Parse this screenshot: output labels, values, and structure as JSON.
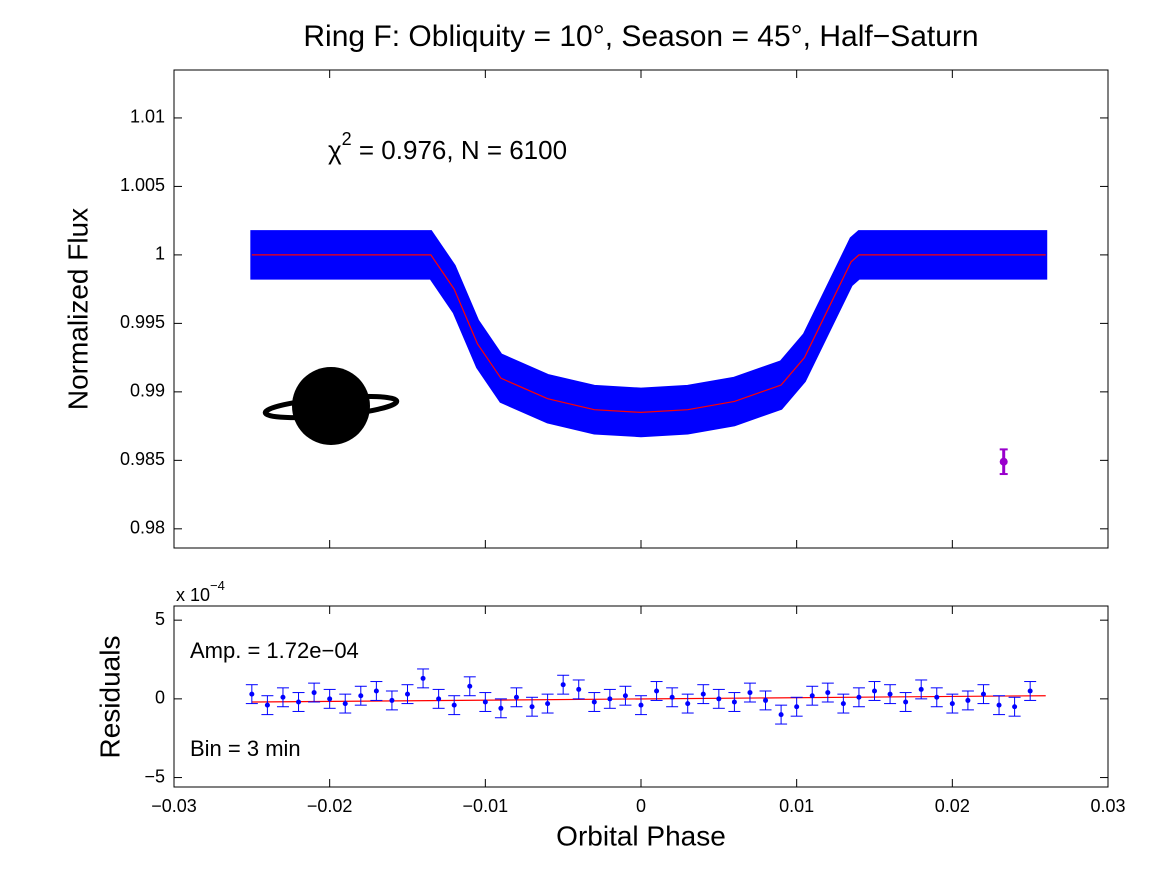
{
  "chart_data": [
    {
      "type": "band",
      "title": "Ring F: Obliquity = 10°, Season = 45°, Half−Saturn",
      "ylabel": "Normalized Flux",
      "annotation": {
        "symbol": "χ",
        "superscript": "2",
        "text": " = 0.976, N = 6100"
      },
      "xlim": [
        -0.03,
        0.03
      ],
      "xticks": [
        -0.03,
        -0.02,
        -0.01,
        0,
        0.01,
        0.02,
        0.03
      ],
      "ylim": [
        0.9786,
        1.0135
      ],
      "yticks": [
        0.98,
        0.985,
        0.99,
        0.995,
        1,
        1.005,
        1.01
      ],
      "x": [
        -0.025,
        -0.02,
        -0.015,
        -0.0135,
        -0.012,
        -0.0105,
        -0.009,
        -0.006,
        -0.003,
        0,
        0.003,
        0.006,
        0.009,
        0.0105,
        0.012,
        0.0135,
        0.014,
        0.02,
        0.026
      ],
      "band": {
        "color": "#0000ff",
        "upper": [
          1.0017,
          1.0017,
          1.0017,
          1.0017,
          0.9992,
          0.9952,
          0.9927,
          0.9912,
          0.9904,
          0.9902,
          0.9904,
          0.991,
          0.9922,
          0.9942,
          0.9977,
          1.0012,
          1.0017,
          1.0017,
          1.0017
        ],
        "lower": [
          0.9983,
          0.9983,
          0.9983,
          0.9983,
          0.9958,
          0.9918,
          0.9893,
          0.9878,
          0.987,
          0.9868,
          0.987,
          0.9876,
          0.9888,
          0.9908,
          0.9943,
          0.9978,
          0.9983,
          0.9983,
          0.9983
        ]
      },
      "series": [
        {
          "color": "#ff0000",
          "values": [
            1,
            1,
            1,
            1,
            0.9975,
            0.9935,
            0.991,
            0.9895,
            0.9887,
            0.9885,
            0.9887,
            0.9893,
            0.9905,
            0.9925,
            0.996,
            0.9995,
            1,
            1,
            1
          ]
        }
      ],
      "errorbar": {
        "x": 0.0233,
        "value": 0.9849,
        "error": 0.0009,
        "color": "#9900cc"
      }
    },
    {
      "type": "errorbar",
      "ylabel": "Residuals",
      "xlabel": "Orbital Phase",
      "y_multiplier": {
        "base": "x 10",
        "exponent": "−4"
      },
      "annotations": [
        "Amp. = 1.72e−04",
        "Bin = 3 min"
      ],
      "xlim": [
        -0.03,
        0.03
      ],
      "xticks": [
        {
          "value": -0.03,
          "label": "−0.03"
        },
        {
          "value": -0.02,
          "label": "−0.02"
        },
        {
          "value": -0.01,
          "label": "−0.01"
        },
        0,
        0.01,
        0.02,
        0.03
      ],
      "ylim": [
        -5.6,
        5.9
      ],
      "yticks": [
        {
          "value": -5,
          "label": "−5"
        },
        0,
        5
      ],
      "x": [
        -0.025,
        -0.024,
        -0.023,
        -0.022,
        -0.021,
        -0.02,
        -0.019,
        -0.018,
        -0.017,
        -0.016,
        -0.015,
        -0.014,
        -0.013,
        -0.012,
        -0.011,
        -0.01,
        -0.009,
        -0.008,
        -0.007,
        -0.006,
        -0.005,
        -0.004,
        -0.003,
        -0.002,
        -0.001,
        0,
        0.001,
        0.002,
        0.003,
        0.004,
        0.005,
        0.006,
        0.007,
        0.008,
        0.009,
        0.01,
        0.011,
        0.012,
        0.013,
        0.014,
        0.015,
        0.016,
        0.017,
        0.018,
        0.019,
        0.02,
        0.021,
        0.022,
        0.023,
        0.024,
        0.025
      ],
      "values": [
        0.3,
        -0.4,
        0.1,
        -0.2,
        0.4,
        0,
        -0.3,
        0.2,
        0.5,
        -0.1,
        0.3,
        1.3,
        0,
        -0.4,
        0.8,
        -0.2,
        -0.6,
        0.1,
        -0.5,
        -0.3,
        0.9,
        0.6,
        -0.2,
        0,
        0.2,
        -0.4,
        0.5,
        0.1,
        -0.3,
        0.3,
        0,
        -0.2,
        0.4,
        -0.1,
        -1.0,
        -0.5,
        0.2,
        0.4,
        -0.3,
        0.1,
        0.5,
        0.3,
        -0.2,
        0.6,
        0.1,
        -0.3,
        -0.1,
        0.3,
        -0.4,
        -0.5,
        0.5
      ],
      "error": 0.6,
      "color": "#0000ff",
      "line": {
        "x": [
          -0.025,
          0.026
        ],
        "values": [
          -0.2,
          0.2
        ],
        "color": "#ff0000"
      }
    }
  ]
}
